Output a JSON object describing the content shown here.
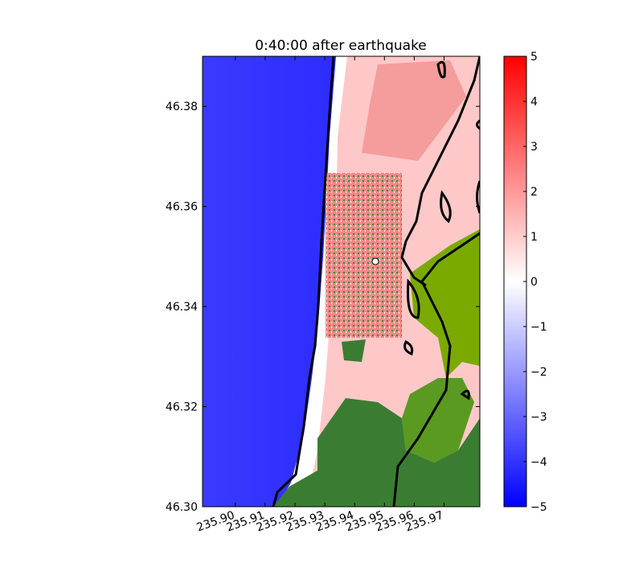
{
  "chart_data": {
    "type": "heatmap",
    "title": "0:40:00 after earthquake",
    "xlim": [
      235.889,
      235.982
    ],
    "xticks": [
      {
        "value": 235.9,
        "label": "235.90"
      },
      {
        "value": 235.91,
        "label": "235.91"
      },
      {
        "value": 235.92,
        "label": "235.92"
      },
      {
        "value": 235.93,
        "label": "235.93"
      },
      {
        "value": 235.94,
        "label": "235.94"
      },
      {
        "value": 235.95,
        "label": "235.95"
      },
      {
        "value": 235.96,
        "label": "235.96"
      },
      {
        "value": 235.97,
        "label": "235.97"
      }
    ],
    "ylim": [
      46.3,
      46.39
    ],
    "yticks": [
      {
        "value": 46.3,
        "label": "46.30"
      },
      {
        "value": 46.32,
        "label": "46.32"
      },
      {
        "value": 46.34,
        "label": "46.34"
      },
      {
        "value": 46.36,
        "label": "46.36"
      },
      {
        "value": 46.38,
        "label": "46.38"
      }
    ],
    "colorbar": {
      "lim": [
        -5,
        5
      ],
      "ticks": [
        {
          "value": -5,
          "label": "−5"
        },
        {
          "value": -4,
          "label": "−4"
        },
        {
          "value": -3,
          "label": "−3"
        },
        {
          "value": -2,
          "label": "−2"
        },
        {
          "value": -1,
          "label": "−1"
        },
        0,
        1,
        2,
        3,
        4,
        5
      ],
      "colors": [
        "#0000ff",
        "#ffffff",
        "#ff0000"
      ]
    }
  }
}
